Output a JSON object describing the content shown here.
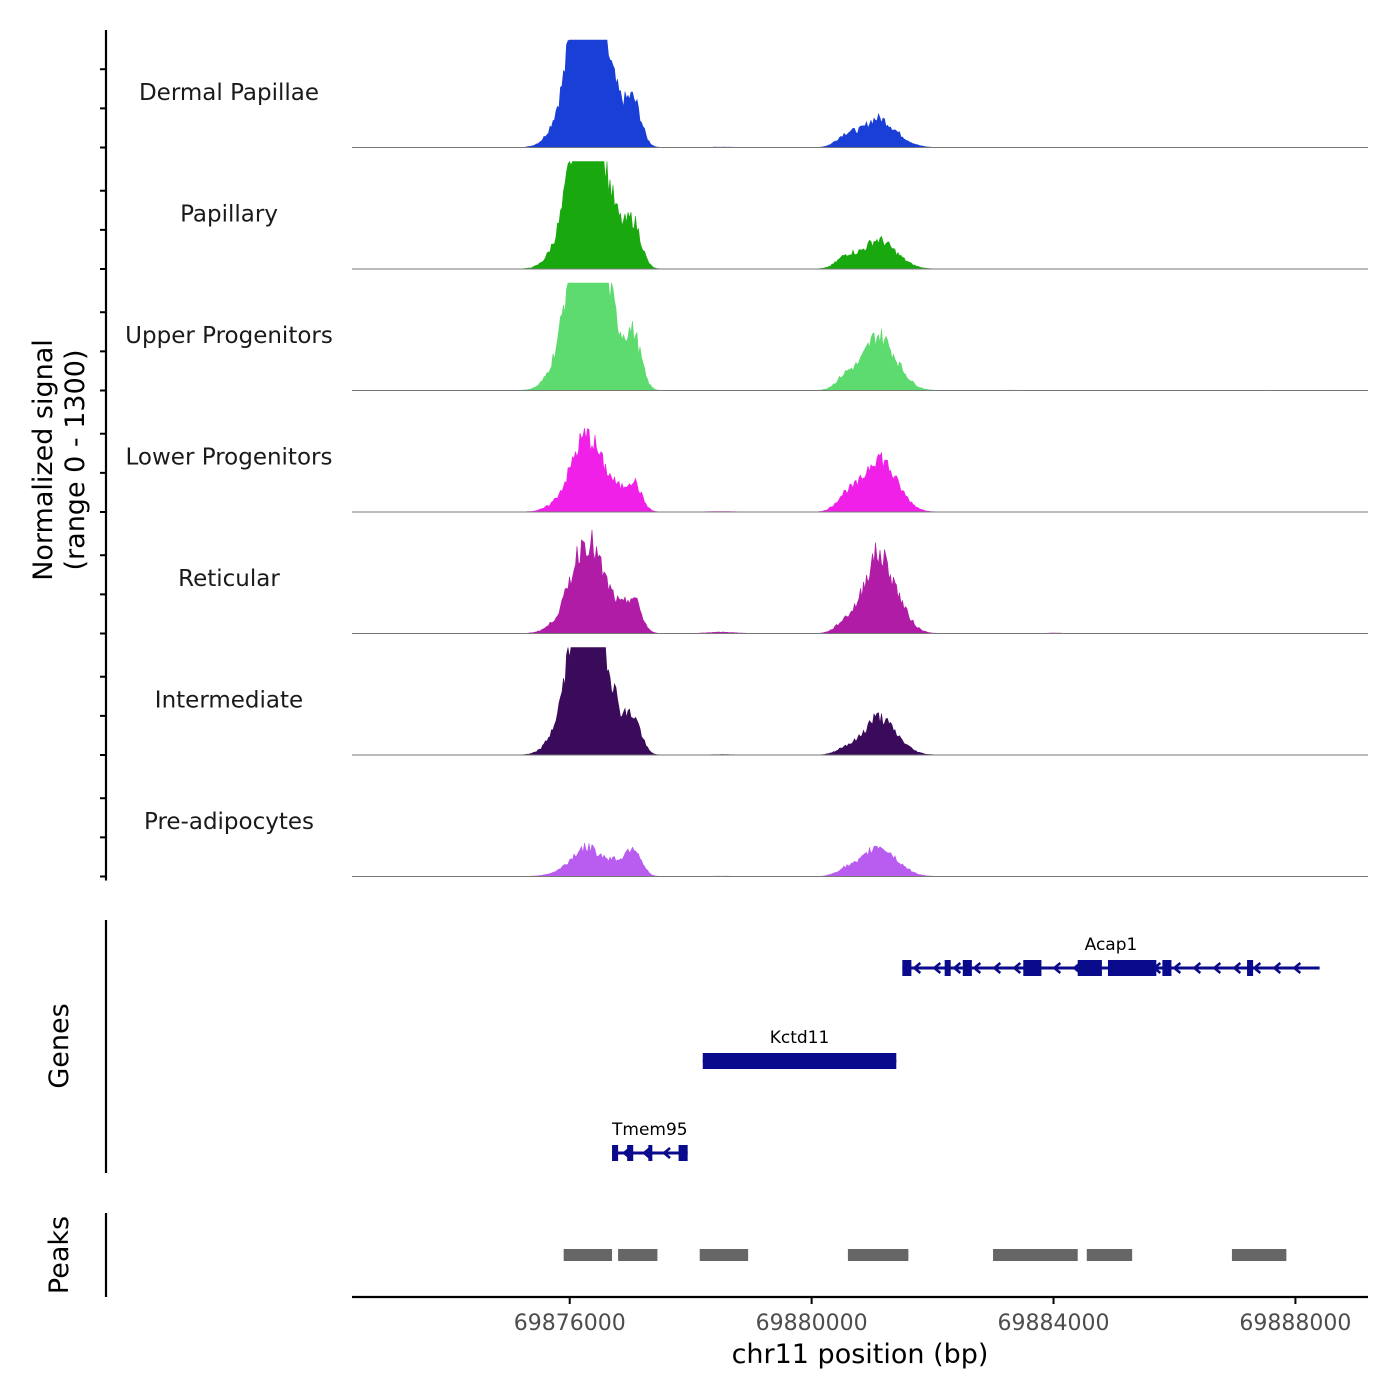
{
  "chart_data": {
    "type": "area",
    "title": "",
    "ylabel_line1": "Normalized signal",
    "ylabel_line2": "(range 0 - 1300)",
    "ylim": [
      0,
      1300
    ],
    "xlabel": "chr11 position (bp)",
    "xlim": [
      69872400,
      69889200
    ],
    "xticks": [
      69876000,
      69880000,
      69884000,
      69888000
    ],
    "xtick_labels": [
      "69876000",
      "69880000",
      "69884000",
      "69888000"
    ],
    "genes_label": "Genes",
    "peaks_label": "Peaks",
    "peak_profile": [
      {
        "pos": 69876200,
        "height": 0.62,
        "width": 200
      },
      {
        "pos": 69876300,
        "height": 0.85,
        "width": 230
      },
      {
        "pos": 69876500,
        "height": 0.55,
        "width": 250
      },
      {
        "pos": 69875900,
        "height": 0.25,
        "width": 220
      },
      {
        "pos": 69876750,
        "height": 0.18,
        "width": 120
      },
      {
        "pos": 69877050,
        "height": 0.62,
        "width": 130
      },
      {
        "pos": 69875500,
        "height": 0.03,
        "width": 200
      },
      {
        "pos": 69878500,
        "height": 0.06,
        "width": 220
      },
      {
        "pos": 69879300,
        "height": 0.02,
        "width": 150
      },
      {
        "pos": 69880600,
        "height": 0.35,
        "width": 170
      },
      {
        "pos": 69881050,
        "height": 0.6,
        "width": 200
      },
      {
        "pos": 69881350,
        "height": 0.3,
        "width": 220
      },
      {
        "pos": 69881700,
        "height": 0.1,
        "width": 180
      },
      {
        "pos": 69883300,
        "height": 0.04,
        "width": 130
      },
      {
        "pos": 69884000,
        "height": 0.03,
        "width": 150
      },
      {
        "pos": 69887500,
        "height": 0.04,
        "width": 120
      }
    ],
    "tracks": [
      {
        "name": "Dermal Papillae",
        "color": "#1a3fd6",
        "peaks": [
          {
            "pos": 69876200,
            "max": 1100
          },
          {
            "pos": 69877050,
            "max": 720
          },
          {
            "pos": 69881050,
            "max": 400
          },
          {
            "pos": 69878500,
            "max": 60
          },
          {
            "pos": 69883300,
            "max": 40
          },
          {
            "pos": 69887500,
            "max": 40
          }
        ]
      },
      {
        "name": "Papillary",
        "color": "#1aa80f",
        "peaks": [
          {
            "pos": 69876200,
            "max": 1050
          },
          {
            "pos": 69877050,
            "max": 720
          },
          {
            "pos": 69881050,
            "max": 400
          },
          {
            "pos": 69878500,
            "max": 30
          },
          {
            "pos": 69883300,
            "max": 40
          },
          {
            "pos": 69887500,
            "max": 30
          }
        ]
      },
      {
        "name": "Upper Progenitors",
        "color": "#5ddb6e",
        "peaks": [
          {
            "pos": 69876300,
            "max": 1300
          },
          {
            "pos": 69877050,
            "max": 860
          },
          {
            "pos": 69881050,
            "max": 760
          },
          {
            "pos": 69880600,
            "max": 480
          },
          {
            "pos": 69883300,
            "max": 80
          },
          {
            "pos": 69887500,
            "max": 60
          }
        ]
      },
      {
        "name": "Lower Progenitors",
        "color": "#f020e8",
        "peaks": [
          {
            "pos": 69876200,
            "max": 420
          },
          {
            "pos": 69877050,
            "max": 480
          },
          {
            "pos": 69881050,
            "max": 760
          },
          {
            "pos": 69880600,
            "max": 560
          },
          {
            "pos": 69878500,
            "max": 80
          },
          {
            "pos": 69884000,
            "max": 60
          }
        ]
      },
      {
        "name": "Reticular",
        "color": "#b01ca6",
        "peaks": [
          {
            "pos": 69876200,
            "max": 520
          },
          {
            "pos": 69877050,
            "max": 540
          },
          {
            "pos": 69881050,
            "max": 1100
          },
          {
            "pos": 69880600,
            "max": 400
          },
          {
            "pos": 69878500,
            "max": 220
          },
          {
            "pos": 69884000,
            "max": 120
          }
        ]
      },
      {
        "name": "Intermediate",
        "color": "#3a0b5a",
        "peaks": [
          {
            "pos": 69876300,
            "max": 1100
          },
          {
            "pos": 69877050,
            "max": 560
          },
          {
            "pos": 69881050,
            "max": 520
          },
          {
            "pos": 69880600,
            "max": 240
          },
          {
            "pos": 69878500,
            "max": 60
          },
          {
            "pos": 69884000,
            "max": 70
          }
        ]
      },
      {
        "name": "Pre-adipocytes",
        "color": "#b95cf0",
        "peaks": [
          {
            "pos": 69876200,
            "max": 160
          },
          {
            "pos": 69877050,
            "max": 470
          },
          {
            "pos": 69881050,
            "max": 420
          },
          {
            "pos": 69880600,
            "max": 260
          },
          {
            "pos": 69878500,
            "max": 50
          },
          {
            "pos": 69887500,
            "max": 50
          }
        ]
      }
    ],
    "genes": [
      {
        "name": "Acap1",
        "start": 69881500,
        "end": 69888400,
        "strand": "-",
        "row": 0,
        "exons": [
          [
            69881500,
            69881650
          ],
          [
            69882200,
            69882300
          ],
          [
            69882500,
            69882650
          ],
          [
            69883500,
            69883800
          ],
          [
            69884400,
            69884800
          ],
          [
            69884900,
            69885700
          ],
          [
            69885800,
            69885950
          ],
          [
            69887200,
            69887300
          ]
        ]
      },
      {
        "name": "Kctd11",
        "start": 69878200,
        "end": 69881400,
        "strand": "+",
        "row": 1,
        "exons": [
          [
            69878200,
            69881400
          ]
        ]
      },
      {
        "name": "Tmem95",
        "start": 69876700,
        "end": 69877950,
        "strand": "-",
        "row": 2,
        "exons": [
          [
            69876700,
            69876800
          ],
          [
            69876950,
            69877050
          ],
          [
            69877300,
            69877350
          ],
          [
            69877800,
            69877950
          ]
        ]
      }
    ],
    "peaks": [
      [
        69875900,
        69876700
      ],
      [
        69876800,
        69877450
      ],
      [
        69878150,
        69878950
      ],
      [
        69880600,
        69881600
      ],
      [
        69883000,
        69884400
      ],
      [
        69884550,
        69885300
      ],
      [
        69886950,
        69887850
      ]
    ],
    "colors": {
      "gene": "#0a0a8c",
      "peak": "#666666",
      "axis": "#000000",
      "baseline": "#777777",
      "tick_text": "#4d4d4d"
    }
  }
}
